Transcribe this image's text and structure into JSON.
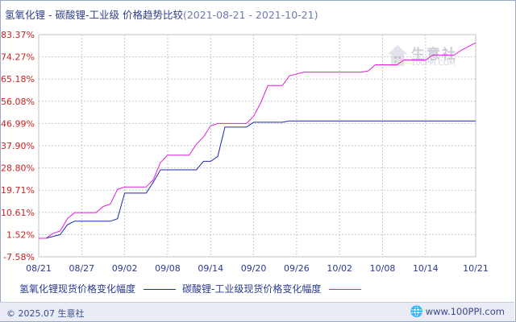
{
  "title": {
    "text": "氢氧化锂 - 碳酸锂-工业级 价格趋势比较",
    "range": "(2021-08-21 - 2021-10-21)"
  },
  "watermark": {
    "name": "生意社",
    "url": "100PPI.COM"
  },
  "footer": {
    "copyright": "© 2025.07 生意社",
    "site": "www.100PPI.com",
    "globe_icon": "globe-icon"
  },
  "colors": {
    "series1": "#1c2bb0",
    "series2": "#e020e0",
    "axis_text_y": "#cc2222",
    "axis_text_x": "#2a3a8f",
    "grid": "#c8c8c8"
  },
  "chart_data": {
    "type": "line",
    "title": "氢氧化锂 - 碳酸锂-工业级 价格趋势比较",
    "subtitle": "(2021-08-21 - 2021-10-21)",
    "xlabel": "",
    "ylabel": "",
    "x_ticks": [
      "08/21",
      "08/27",
      "09/02",
      "09/08",
      "09/14",
      "09/20",
      "09/26",
      "10/02",
      "10/08",
      "10/14",
      "10/21"
    ],
    "y_ticks": [
      "83.37%",
      "74.27%",
      "65.18%",
      "56.08%",
      "46.99%",
      "37.90%",
      "28.80%",
      "19.71%",
      "10.61%",
      "1.52%",
      "-7.58%"
    ],
    "ylim": [
      -7.58,
      83.37
    ],
    "x_range": [
      "2021-08-21",
      "2021-10-21"
    ],
    "grid": true,
    "legend": "bottom",
    "series": [
      {
        "name": "氢氧化锂现货价格变化幅度",
        "color": "#1c2bb0",
        "points": [
          [
            "2021-08-21",
            0
          ],
          [
            "2021-08-22",
            0
          ],
          [
            "2021-08-24",
            1.5
          ],
          [
            "2021-08-25",
            5.5
          ],
          [
            "2021-08-26",
            7.0
          ],
          [
            "2021-08-27",
            7.0
          ],
          [
            "2021-08-31",
            7.0
          ],
          [
            "2021-09-01",
            8.0
          ],
          [
            "2021-09-02",
            18.5
          ],
          [
            "2021-09-05",
            18.5
          ],
          [
            "2021-09-06",
            23.0
          ],
          [
            "2021-09-07",
            28.0
          ],
          [
            "2021-09-12",
            28.0
          ],
          [
            "2021-09-13",
            31.5
          ],
          [
            "2021-09-14",
            31.5
          ],
          [
            "2021-09-15",
            33.5
          ],
          [
            "2021-09-16",
            45.5
          ],
          [
            "2021-09-19",
            45.5
          ],
          [
            "2021-09-20",
            47.5
          ],
          [
            "2021-09-24",
            47.5
          ],
          [
            "2021-09-25",
            48.0
          ],
          [
            "2021-10-21",
            48.0
          ]
        ]
      },
      {
        "name": "碳酸锂-工业级现货价格变化幅度",
        "color": "#e020e0",
        "points": [
          [
            "2021-08-21",
            0
          ],
          [
            "2021-08-22",
            0
          ],
          [
            "2021-08-23",
            2.0
          ],
          [
            "2021-08-24",
            3.0
          ],
          [
            "2021-08-25",
            8.0
          ],
          [
            "2021-08-26",
            10.5
          ],
          [
            "2021-08-27",
            10.5
          ],
          [
            "2021-08-29",
            10.5
          ],
          [
            "2021-08-30",
            13.0
          ],
          [
            "2021-08-31",
            14.0
          ],
          [
            "2021-09-01",
            20.0
          ],
          [
            "2021-09-02",
            21.0
          ],
          [
            "2021-09-05",
            21.0
          ],
          [
            "2021-09-06",
            24.0
          ],
          [
            "2021-09-07",
            31.0
          ],
          [
            "2021-09-08",
            34.0
          ],
          [
            "2021-09-11",
            34.0
          ],
          [
            "2021-09-12",
            38.5
          ],
          [
            "2021-09-13",
            41.5
          ],
          [
            "2021-09-14",
            46.0
          ],
          [
            "2021-09-15",
            47.0
          ],
          [
            "2021-09-19",
            47.0
          ],
          [
            "2021-09-20",
            50.0
          ],
          [
            "2021-09-21",
            55.5
          ],
          [
            "2021-09-22",
            62.5
          ],
          [
            "2021-09-24",
            62.5
          ],
          [
            "2021-09-25",
            66.5
          ],
          [
            "2021-09-27",
            68.0
          ],
          [
            "2021-10-05",
            68.0
          ],
          [
            "2021-10-06",
            68.5
          ],
          [
            "2021-10-07",
            71.0
          ],
          [
            "2021-10-10",
            71.0
          ],
          [
            "2021-10-11",
            73.0
          ],
          [
            "2021-10-14",
            73.0
          ],
          [
            "2021-10-15",
            75.0
          ],
          [
            "2021-10-18",
            75.0
          ],
          [
            "2021-10-19",
            77.0
          ],
          [
            "2021-10-21",
            80.0
          ]
        ]
      }
    ]
  }
}
